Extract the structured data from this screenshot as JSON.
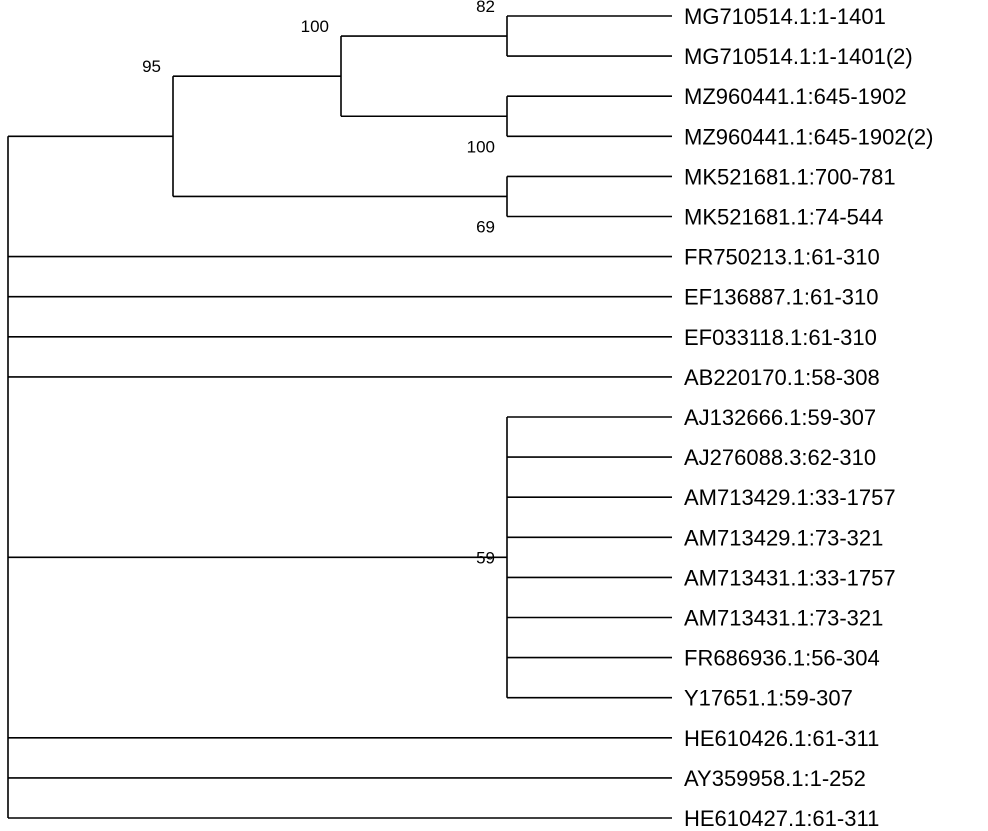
{
  "tree": {
    "taxa": [
      "MG710514.1:1-1401",
      "MG710514.1:1-1401(2)",
      "MZ960441.1:645-1902",
      "MZ960441.1:645-1902(2)",
      "MK521681.1:700-781",
      "MK521681.1:74-544",
      "FR750213.1:61-310",
      "EF136887.1:61-310",
      "EF033118.1:61-310",
      "AB220170.1:58-308",
      "AJ132666.1:59-307",
      "AJ276088.3:62-310",
      "AM713429.1:33-1757",
      "AM713429.1:73-321",
      "AM713431.1:33-1757",
      "AM713431.1:73-321",
      "FR686936.1:56-304",
      "Y17651.1:59-307",
      "HE610426.1:61-311",
      "AY359958.1:1-252",
      "HE610427.1:61-311"
    ],
    "clades": [
      {
        "id": "c82",
        "members": [
          "MG710514.1:1-1401",
          "MG710514.1:1-1401(2)"
        ],
        "support": "82"
      },
      {
        "id": "c100b",
        "members": [
          "MZ960441.1:645-1902",
          "MZ960441.1:645-1902(2)"
        ],
        "support": "100"
      },
      {
        "id": "c100a",
        "members": [
          "c82",
          "c100b"
        ],
        "support": "100"
      },
      {
        "id": "c69",
        "members": [
          "MK521681.1:700-781",
          "MK521681.1:74-544"
        ],
        "support": "69"
      },
      {
        "id": "c95",
        "members": [
          "c100a",
          "c69"
        ],
        "support": "95"
      },
      {
        "id": "c59",
        "members": [
          "AJ132666.1:59-307",
          "AJ276088.3:62-310",
          "AM713429.1:33-1757",
          "AM713429.1:73-321",
          "AM713431.1:33-1757",
          "AM713431.1:73-321",
          "FR686936.1:56-304",
          "Y17651.1:59-307"
        ],
        "support": "59"
      }
    ],
    "root_members": [
      "c95",
      "FR750213.1:61-310",
      "EF136887.1:61-310",
      "EF033118.1:61-310",
      "AB220170.1:58-308",
      "c59",
      "HE610426.1:61-311",
      "AY359958.1:1-252",
      "HE610427.1:61-311"
    ],
    "line_color": "#000000"
  }
}
